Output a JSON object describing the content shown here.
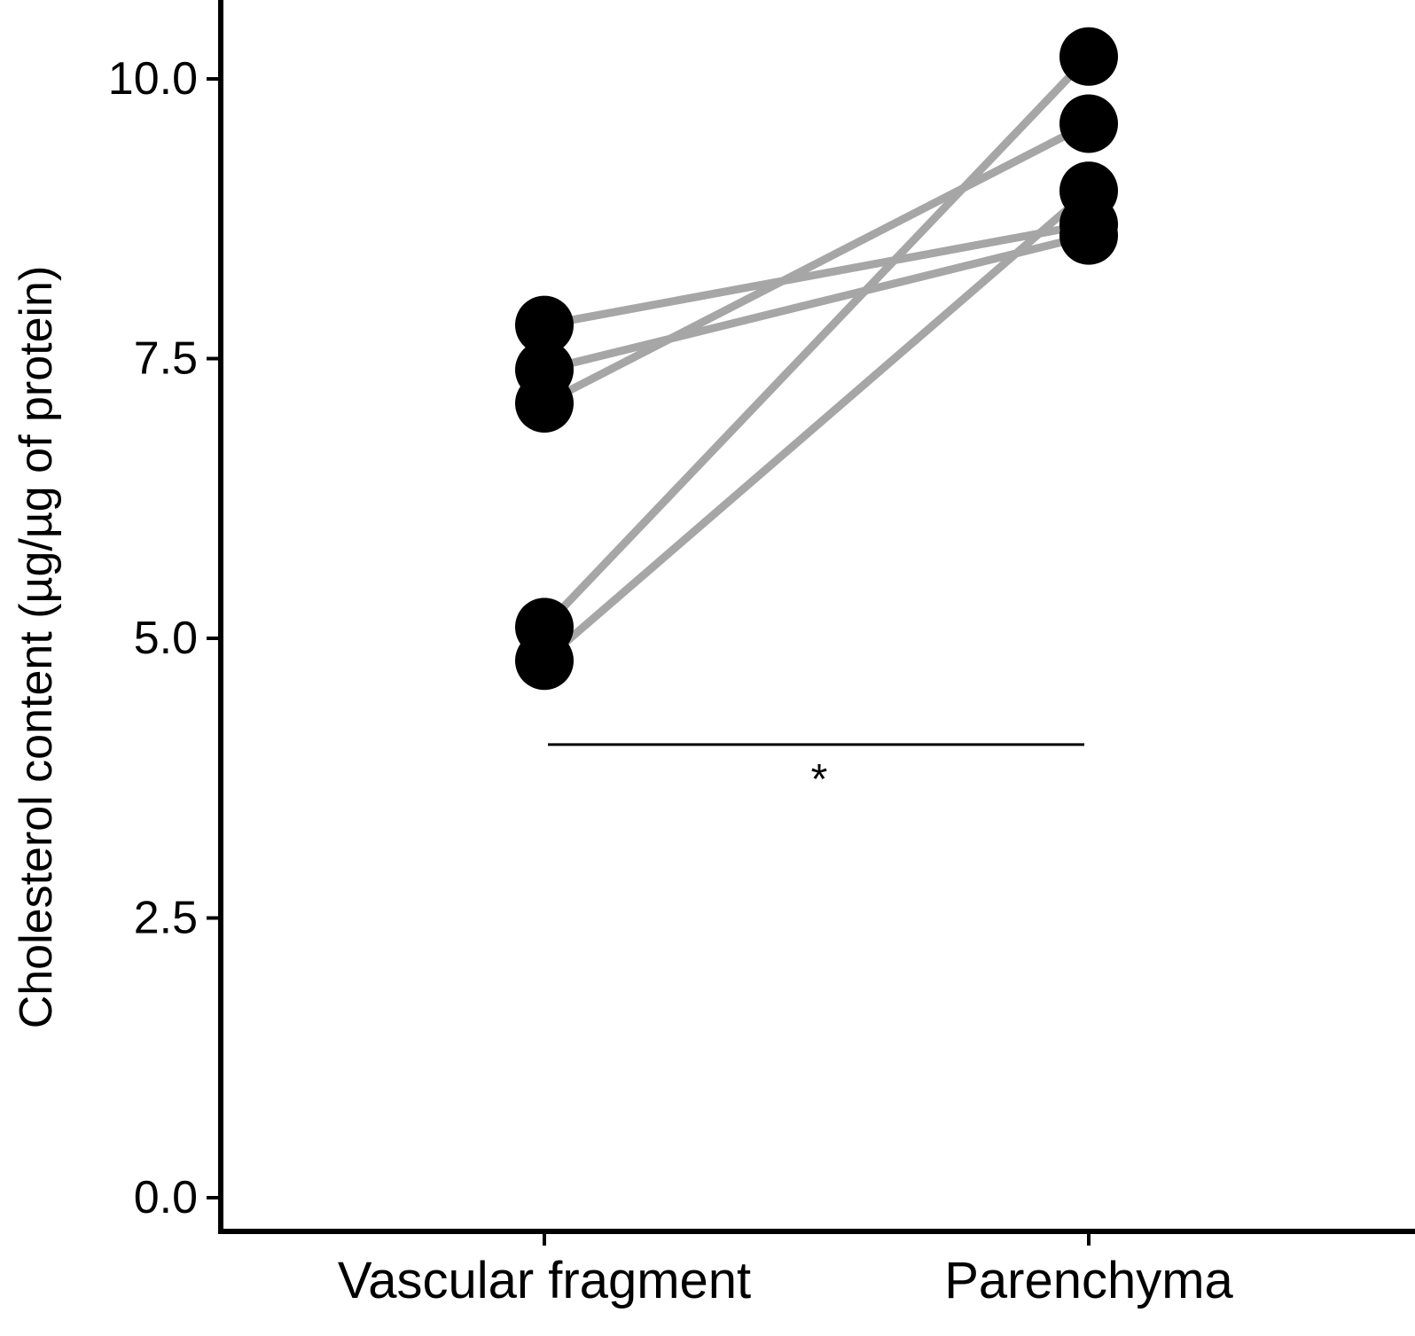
{
  "chart_data": {
    "type": "line",
    "title": "",
    "xlabel": "",
    "ylabel": "Cholesterol content (µg/µg of protein)",
    "categories": [
      "Vascular fragment",
      "Parenchyma"
    ],
    "ylim": [
      -0.5,
      10.75
    ],
    "yticks": [
      "0.0",
      "2.5",
      "5.0",
      "7.5",
      "10.0"
    ],
    "ytick_values": [
      0.0,
      2.5,
      5.0,
      7.5,
      10.0
    ],
    "grid": false,
    "legend": "none",
    "series": [
      {
        "values": [
          7.8,
          8.7
        ]
      },
      {
        "values": [
          7.4,
          8.6
        ]
      },
      {
        "values": [
          7.1,
          9.6
        ]
      },
      {
        "values": [
          5.1,
          10.2
        ]
      },
      {
        "values": [
          4.8,
          9.0
        ]
      }
    ],
    "annotations": [
      {
        "text": "*",
        "from": "Vascular fragment",
        "to": "Parenchyma",
        "y": 4.05
      }
    ],
    "colors": {
      "line": "#a6a6a6",
      "point": "#000000",
      "axis": "#000000",
      "background": "#ffffff"
    }
  }
}
